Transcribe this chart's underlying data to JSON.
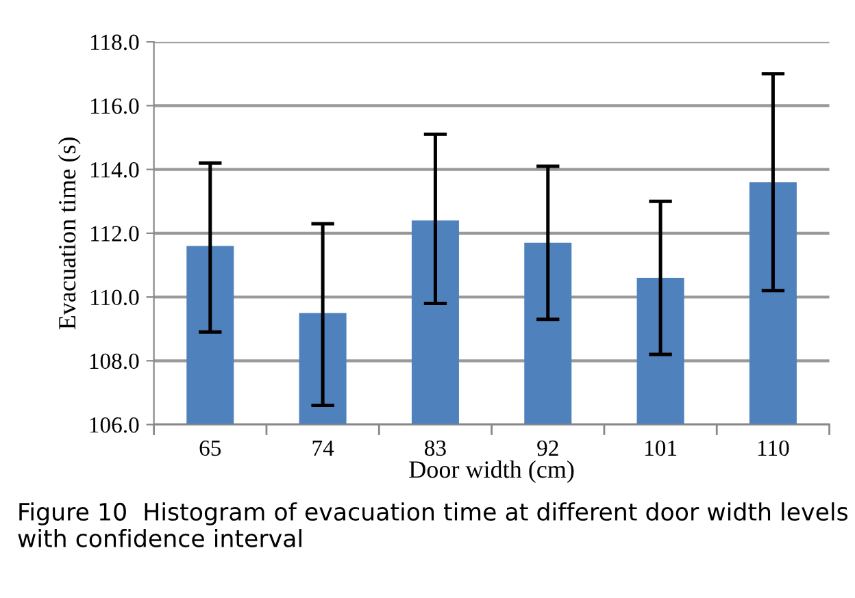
{
  "chart_data": {
    "type": "bar",
    "xlabel": "Door width (cm)",
    "ylabel": "Evacuation time (s)",
    "categories": [
      "65",
      "74",
      "83",
      "92",
      "101",
      "110"
    ],
    "values": [
      111.6,
      109.5,
      112.4,
      111.7,
      110.6,
      113.6
    ],
    "errors": [
      [
        108.9,
        114.2
      ],
      [
        106.6,
        112.3
      ],
      [
        109.8,
        115.1
      ],
      [
        109.3,
        114.1
      ],
      [
        108.2,
        113.0
      ],
      [
        110.2,
        117.0
      ]
    ],
    "color": "#4f81bd",
    "ylim": [
      106,
      118
    ],
    "yticks": [
      {
        "value": 106,
        "label": "106.0"
      },
      {
        "value": 108,
        "label": "108.0"
      },
      {
        "value": 110,
        "label": "110.0"
      },
      {
        "value": 112,
        "label": "112.0"
      },
      {
        "value": 114,
        "label": "114.0"
      },
      {
        "value": 116,
        "label": "116.0"
      },
      {
        "value": 118,
        "label": "118.0"
      }
    ],
    "grid": "y",
    "annotations": [
      "Figure 10  Histogram of evacuation time at different door width levels with confidence interval"
    ]
  }
}
